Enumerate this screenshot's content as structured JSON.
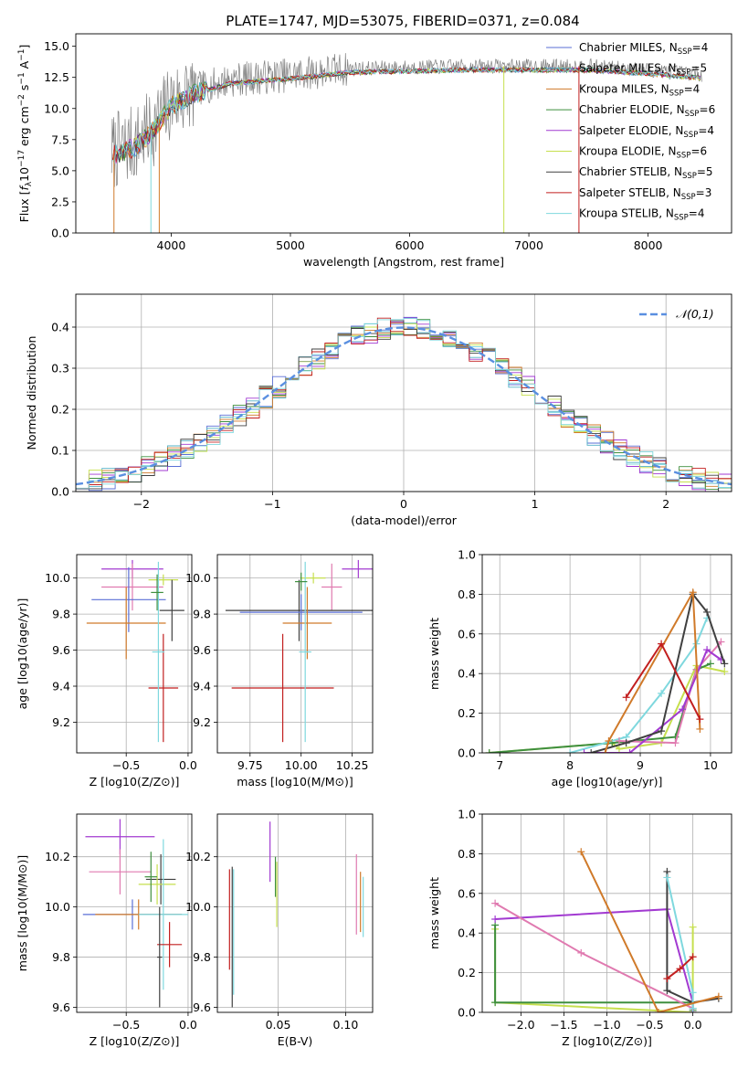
{
  "figure": {
    "title": "PLATE=1747, MJD=53075, FIBERID=0371, z=0.084"
  },
  "colors": {
    "Chabrier MILES": "#5a6fd6",
    "Salpeter MILES": "#52b0c6",
    "Kroupa MILES": "#d07a2a",
    "Chabrier ELODIE": "#3f8f3f",
    "Salpeter ELODIE": "#a23ad1",
    "Kroupa ELODIE": "#c6df4e",
    "Chabrier STELIB": "#404040",
    "Salpeter STELIB": "#c21f1f",
    "Kroupa STELIB": "#7fd8de",
    "pink": "#e07ab0",
    "gauss": "#5a8fe0",
    "grid": "#b0b0b0",
    "gray_spectrum": "#808080"
  },
  "chart_data": [
    {
      "id": "spectrum",
      "type": "line",
      "title": "PLATE=1747, MJD=53075, FIBERID=0371, z=0.084",
      "xlabel": "wavelength [Angstrom, rest frame]",
      "ylabel": "Flux [f_λ 10^-17 erg cm^-2 s^-1 A^-1]",
      "xlim": [
        3200,
        8700
      ],
      "ylim": [
        0,
        16
      ],
      "xticks": [
        4000,
        5000,
        6000,
        7000,
        8000
      ],
      "yticks": [
        0.0,
        2.5,
        5.0,
        7.5,
        10.0,
        12.5,
        15.0
      ],
      "ytick_labels": [
        "0.0",
        "2.5",
        "5.0",
        "7.5",
        "10.0",
        "12.5",
        "15.0"
      ],
      "grid": false,
      "legend_position": "right",
      "legend": [
        {
          "model": "Chabrier MILES",
          "nssp": "4"
        },
        {
          "model": "Salpeter MILES",
          "nssp": "5"
        },
        {
          "model": "Kroupa MILES",
          "nssp": "4"
        },
        {
          "model": "Chabrier ELODIE",
          "nssp": "6"
        },
        {
          "model": "Salpeter ELODIE",
          "nssp": "4"
        },
        {
          "model": "Kroupa ELODIE",
          "nssp": "6"
        },
        {
          "model": "Chabrier STELIB",
          "nssp": "5"
        },
        {
          "model": "Salpeter STELIB",
          "nssp": "3"
        },
        {
          "model": "Kroupa STELIB",
          "nssp": "4"
        }
      ],
      "continuum": {
        "x": [
          3500,
          3700,
          3850,
          4000,
          4200,
          4500,
          5000,
          5500,
          6000,
          6500,
          7000,
          7500,
          8000,
          8500
        ],
        "y": [
          6.5,
          7.2,
          8.5,
          10.5,
          11.5,
          12.3,
          12.7,
          13.2,
          13.3,
          13.4,
          13.4,
          13.4,
          13.1,
          12.7
        ]
      }
    },
    {
      "id": "residuals",
      "type": "bar",
      "xlabel": "(data-model)/error",
      "ylabel": "Normed distribution",
      "xlim": [
        -2.5,
        2.5
      ],
      "ylim": [
        0,
        0.48
      ],
      "xticks": [
        -2,
        -1,
        0,
        1,
        2
      ],
      "xtick_labels": [
        "−2",
        "−1",
        "0",
        "1",
        "2"
      ],
      "yticks": [
        0.0,
        0.1,
        0.2,
        0.3,
        0.4
      ],
      "ytick_labels": [
        "0.0",
        "0.1",
        "0.2",
        "0.3",
        "0.4"
      ],
      "grid": true,
      "legend_position": "top-right",
      "legend_label": "𝒩(0,1)",
      "bin_width": 0.1
    },
    {
      "id": "age-vs-Z",
      "type": "scatter",
      "xlabel": "Z [log10(Z/Z⊙)]",
      "ylabel": "age [log10(age/yr)]",
      "xlim": [
        -0.9,
        0.03
      ],
      "ylim": [
        9.03,
        10.13
      ],
      "xticks": [
        -0.5,
        0.0
      ],
      "xtick_labels": [
        "−0.5",
        "0.0"
      ],
      "yticks": [
        9.2,
        9.4,
        9.6,
        9.8,
        10.0
      ],
      "ytick_labels": [
        "9.2",
        "9.4",
        "9.6",
        "9.8",
        "10.0"
      ],
      "grid": true,
      "points": [
        {
          "series": "Salpeter ELODIE",
          "x": -0.45,
          "xerr": 0.25,
          "y": 10.05,
          "yerr": 0.05
        },
        {
          "series": "Kroupa ELODIE",
          "x": -0.2,
          "xerr": 0.12,
          "y": 9.99,
          "yerr": 0.03
        },
        {
          "series": "pink",
          "x": -0.45,
          "xerr": 0.25,
          "y": 9.95,
          "yerr": 0.13
        },
        {
          "series": "Chabrier MILES",
          "x": -0.48,
          "xerr": 0.3,
          "y": 9.88,
          "yerr": 0.18
        },
        {
          "series": "Chabrier STELIB",
          "x": -0.13,
          "xerr": 0.1,
          "y": 9.82,
          "yerr": 0.17
        },
        {
          "series": "Kroupa MILES",
          "x": -0.5,
          "xerr": 0.32,
          "y": 9.75,
          "yerr": 0.2
        },
        {
          "series": "Salpeter STELIB",
          "x": -0.2,
          "xerr": 0.12,
          "y": 9.39,
          "yerr": 0.3
        },
        {
          "series": "Kroupa STELIB",
          "x": -0.24,
          "xerr": 0.05,
          "y": 9.59,
          "yerr": 0.5
        },
        {
          "series": "Chabrier ELODIE",
          "x": -0.25,
          "xerr": 0.05,
          "y": 9.92,
          "yerr": 0.1
        }
      ]
    },
    {
      "id": "age-vs-mass",
      "type": "scatter",
      "xlabel": "mass [log10(M/M⊙)]",
      "ylabel": "",
      "xlim": [
        9.59,
        10.35
      ],
      "ylim": [
        9.03,
        10.13
      ],
      "xticks": [
        9.75,
        10.0,
        10.25
      ],
      "xtick_labels": [
        "9.75",
        "10.00",
        "10.25"
      ],
      "yticks": [
        9.2,
        9.4,
        9.6,
        9.8,
        10.0
      ],
      "ytick_labels": [
        "9.2",
        "9.4",
        "9.6",
        "9.8",
        "10.0"
      ],
      "grid": true,
      "points": [
        {
          "series": "Salpeter ELODIE",
          "x": 10.28,
          "xerr": 0.08,
          "y": 10.05,
          "yerr": 0.05
        },
        {
          "series": "Kroupa ELODIE",
          "x": 10.06,
          "xerr": 0.06,
          "y": 10.0,
          "yerr": 0.03
        },
        {
          "series": "pink",
          "x": 10.15,
          "xerr": 0.05,
          "y": 9.95,
          "yerr": 0.13
        },
        {
          "series": "Chabrier STELIB",
          "x": 9.99,
          "xerr": 0.36,
          "y": 9.82,
          "yerr": 0.17
        },
        {
          "series": "Chabrier MILES",
          "x": 10.0,
          "xerr": 0.3,
          "y": 9.81,
          "yerr": 0.1
        },
        {
          "series": "Kroupa MILES",
          "x": 10.03,
          "xerr": 0.12,
          "y": 9.75,
          "yerr": 0.2
        },
        {
          "series": "Salpeter STELIB",
          "x": 9.91,
          "xerr": 0.25,
          "y": 9.39,
          "yerr": 0.3
        },
        {
          "series": "Kroupa STELIB",
          "x": 10.02,
          "xerr": 0.03,
          "y": 9.59,
          "yerr": 0.5
        },
        {
          "series": "Chabrier ELODIE",
          "x": 10.0,
          "xerr": 0.03,
          "y": 9.98,
          "yerr": 0.05
        }
      ]
    },
    {
      "id": "weight-vs-age",
      "type": "line",
      "xlabel": "age [log10(age/yr)]",
      "ylabel": "mass weight",
      "xlim": [
        6.75,
        10.3
      ],
      "ylim": [
        0,
        1.0
      ],
      "xticks": [
        7,
        8,
        9,
        10
      ],
      "xtick_labels": [
        "7",
        "8",
        "9",
        "10"
      ],
      "yticks": [
        0.0,
        0.2,
        0.4,
        0.6,
        0.8,
        1.0
      ],
      "ytick_labels": [
        "0.0",
        "0.2",
        "0.4",
        "0.6",
        "0.8",
        "1.0"
      ],
      "grid": true,
      "series": [
        {
          "name": "Kroupa ELODIE",
          "x": [
            6.85,
            8.6,
            8.7,
            9.3,
            9.8,
            10.2
          ],
          "y": [
            0.0,
            0.05,
            0.02,
            0.05,
            0.44,
            0.41
          ]
        },
        {
          "name": "Chabrier ELODIE",
          "x": [
            6.85,
            8.6,
            9.5,
            9.8,
            10.0
          ],
          "y": [
            0.0,
            0.05,
            0.08,
            0.42,
            0.45
          ]
        },
        {
          "name": "Kroupa STELIB",
          "x": [
            8.0,
            8.8,
            9.3,
            9.8,
            9.95
          ],
          "y": [
            0.0,
            0.08,
            0.3,
            0.55,
            0.68
          ]
        },
        {
          "name": "pink",
          "x": [
            8.7,
            9.5,
            9.8,
            10.15
          ],
          "y": [
            0.06,
            0.05,
            0.42,
            0.56
          ]
        },
        {
          "name": "Salpeter ELODIE",
          "x": [
            8.2,
            8.85,
            9.6,
            9.95,
            10.15
          ],
          "y": [
            0.0,
            0.0,
            0.22,
            0.52,
            0.47
          ]
        },
        {
          "name": "Chabrier STELIB",
          "x": [
            8.3,
            8.8,
            9.3,
            9.75,
            9.95,
            10.2
          ],
          "y": [
            0.0,
            0.05,
            0.11,
            0.8,
            0.71,
            0.45
          ]
        },
        {
          "name": "Kroupa MILES",
          "x": [
            8.5,
            8.55,
            9.75,
            9.85
          ],
          "y": [
            0.0,
            0.06,
            0.81,
            0.12
          ]
        },
        {
          "name": "Salpeter STELIB",
          "x": [
            8.8,
            9.3,
            9.85
          ],
          "y": [
            0.28,
            0.55,
            0.17
          ]
        }
      ]
    },
    {
      "id": "mass-vs-Z",
      "type": "scatter",
      "xlabel": "Z [log10(Z/Z⊙)]",
      "ylabel": "mass [log10(M/M⊙)]",
      "xlim": [
        -0.9,
        0.03
      ],
      "ylim": [
        9.58,
        10.37
      ],
      "xticks": [
        -0.5,
        0.0
      ],
      "xtick_labels": [
        "−0.5",
        "0.0"
      ],
      "yticks": [
        9.6,
        9.8,
        10.0,
        10.2
      ],
      "ytick_labels": [
        "9.6",
        "9.8",
        "10.0",
        "10.2"
      ],
      "grid": true,
      "points": [
        {
          "series": "Salpeter ELODIE",
          "x": -0.55,
          "xerr": 0.28,
          "y": 10.28,
          "yerr": 0.07
        },
        {
          "series": "pink",
          "x": -0.55,
          "xerr": 0.25,
          "y": 10.14,
          "yerr": 0.09
        },
        {
          "series": "Chabrier STELIB",
          "x": -0.22,
          "xerr": 0.12,
          "y": 10.11,
          "yerr": 0.1
        },
        {
          "series": "Kroupa ELODIE",
          "x": -0.25,
          "xerr": 0.15,
          "y": 10.09,
          "yerr": 0.08
        },
        {
          "series": "Chabrier ELODIE",
          "x": -0.3,
          "xerr": 0.05,
          "y": 10.12,
          "yerr": 0.1
        },
        {
          "series": "Chabrier MILES",
          "x": -0.45,
          "xerr": 0.4,
          "y": 9.97,
          "yerr": 0.06
        },
        {
          "series": "Kroupa MILES",
          "x": -0.4,
          "xerr": 0.35,
          "y": 9.97,
          "yerr": 0.06
        },
        {
          "series": "Kroupa STELIB",
          "x": -0.2,
          "xerr": 0.2,
          "y": 9.97,
          "yerr": 0.3
        },
        {
          "series": "Salpeter STELIB",
          "x": -0.15,
          "xerr": 0.1,
          "y": 9.85,
          "yerr": 0.09
        },
        {
          "series": "Chabrier STELIB",
          "x": -0.23,
          "xerr": 0.02,
          "y": 9.8,
          "yerr": 0.2
        }
      ]
    },
    {
      "id": "mass-vs-EBV",
      "type": "scatter",
      "xlabel": "E(B-V)",
      "ylabel": "",
      "xlim": [
        0.005,
        0.12
      ],
      "ylim": [
        9.58,
        10.37
      ],
      "xticks": [
        0.05,
        0.1
      ],
      "xtick_labels": [
        "0.05",
        "0.10"
      ],
      "yticks": [
        9.6,
        9.8,
        10.0,
        10.2
      ],
      "ytick_labels": [
        "9.6",
        "9.8",
        "10.0",
        "10.2"
      ],
      "grid": true,
      "points": [
        {
          "series": "Salpeter STELIB",
          "x": 0.014,
          "y": 9.95,
          "yerr": 0.2
        },
        {
          "series": "Chabrier STELIB",
          "x": 0.016,
          "y": 9.88,
          "yerr": 0.28
        },
        {
          "series": "Kroupa STELIB",
          "x": 0.017,
          "y": 9.9,
          "yerr": 0.25
        },
        {
          "series": "Salpeter ELODIE",
          "x": 0.044,
          "y": 10.22,
          "yerr": 0.12
        },
        {
          "series": "Kroupa ELODIE",
          "x": 0.049,
          "y": 10.05,
          "yerr": 0.13
        },
        {
          "series": "Chabrier ELODIE",
          "x": 0.048,
          "y": 10.12,
          "yerr": 0.08
        },
        {
          "series": "pink",
          "x": 0.108,
          "y": 10.05,
          "yerr": 0.16
        },
        {
          "series": "Kroupa MILES",
          "x": 0.111,
          "y": 10.02,
          "yerr": 0.12
        },
        {
          "series": "Kroupa STELIB",
          "x": 0.113,
          "y": 10.0,
          "yerr": 0.12
        }
      ]
    },
    {
      "id": "weight-vs-Z",
      "type": "line",
      "xlabel": "Z [log10(Z/Z⊙)]",
      "ylabel": "mass weight",
      "xlim": [
        -2.45,
        0.45
      ],
      "ylim": [
        0,
        1.0
      ],
      "xticks": [
        -2.0,
        -1.5,
        -1.0,
        -0.5,
        0.0
      ],
      "xtick_labels": [
        "−2.0",
        "−1.5",
        "−1.0",
        "−0.5",
        "0.0"
      ],
      "yticks": [
        0.0,
        0.2,
        0.4,
        0.6,
        0.8,
        1.0
      ],
      "ytick_labels": [
        "0.0",
        "0.2",
        "0.4",
        "0.6",
        "0.8",
        "1.0"
      ],
      "grid": true,
      "series": [
        {
          "name": "Kroupa ELODIE",
          "x": [
            -2.3,
            -2.3,
            0.0,
            0.0,
            0.0
          ],
          "y": [
            0.42,
            0.05,
            0.0,
            0.43,
            0.02
          ]
        },
        {
          "name": "Chabrier ELODIE",
          "x": [
            -2.3,
            -2.3,
            0.0,
            0.0
          ],
          "y": [
            0.44,
            0.05,
            0.05,
            0.01
          ]
        },
        {
          "name": "Salpeter ELODIE",
          "x": [
            -2.3,
            -0.3,
            0.0,
            0.0
          ],
          "y": [
            0.47,
            0.52,
            0.05,
            0.0
          ]
        },
        {
          "name": "pink",
          "x": [
            -2.3,
            -1.3,
            0.0
          ],
          "y": [
            0.55,
            0.3,
            0.02
          ]
        },
        {
          "name": "Chabrier STELIB",
          "x": [
            -0.3,
            -0.3,
            0.0,
            0.3
          ],
          "y": [
            0.71,
            0.11,
            0.05,
            0.07
          ]
        },
        {
          "name": "Kroupa STELIB",
          "x": [
            -0.3,
            0.0,
            0.0
          ],
          "y": [
            0.68,
            0.1,
            0.02
          ]
        },
        {
          "name": "Kroupa MILES",
          "x": [
            -1.3,
            -0.4,
            0.3
          ],
          "y": [
            0.81,
            0.0,
            0.08
          ]
        },
        {
          "name": "Salpeter STELIB",
          "x": [
            -0.3,
            -0.15,
            0.0
          ],
          "y": [
            0.17,
            0.22,
            0.28
          ]
        }
      ]
    }
  ]
}
